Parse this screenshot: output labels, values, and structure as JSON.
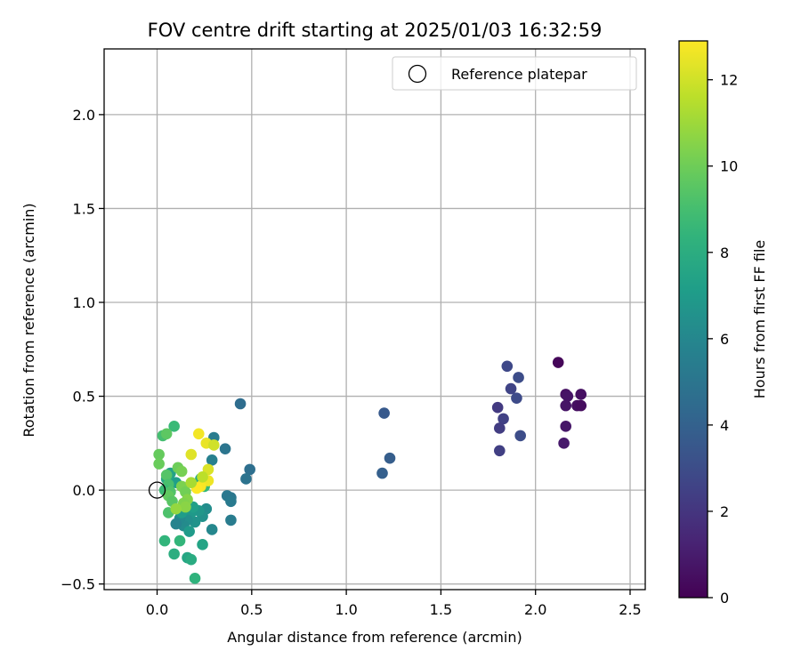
{
  "chart_data": {
    "type": "scatter",
    "title": "FOV centre drift starting at 2025/01/03 16:32:59",
    "xlabel": "Angular distance from reference (arcmin)",
    "ylabel": "Rotation from reference (arcmin)",
    "xlim": [
      -0.28,
      2.58
    ],
    "ylim": [
      -0.53,
      2.35
    ],
    "xticks": [
      0.0,
      0.5,
      1.0,
      1.5,
      2.0,
      2.5
    ],
    "xtick_labels": [
      "0.0",
      "0.5",
      "1.0",
      "1.5",
      "2.0",
      "2.5"
    ],
    "yticks": [
      -0.5,
      0.0,
      0.5,
      1.0,
      1.5,
      2.0
    ],
    "ytick_labels": [
      "−0.5",
      "0.0",
      "0.5",
      "1.0",
      "1.5",
      "2.0"
    ],
    "grid": true,
    "colormap": "viridis",
    "colorbar": {
      "label": "Hours from first FF file",
      "range": [
        0,
        12.9
      ],
      "ticks": [
        0,
        2,
        4,
        6,
        8,
        10,
        12
      ],
      "tick_labels": [
        "0",
        "2",
        "4",
        "6",
        "8",
        "10",
        "12"
      ]
    },
    "legend": {
      "placement": "top-right",
      "entries": [
        {
          "label": "Reference platepar",
          "marker": "open-circle"
        }
      ]
    },
    "reference_point": {
      "x": 0.0,
      "y": 0.0
    },
    "points": [
      {
        "x": 2.12,
        "y": 0.68,
        "t": 0.2
      },
      {
        "x": 2.16,
        "y": 0.51,
        "t": 0.6
      },
      {
        "x": 2.17,
        "y": 0.5,
        "t": 0.7
      },
      {
        "x": 2.24,
        "y": 0.51,
        "t": 0.5
      },
      {
        "x": 2.16,
        "y": 0.45,
        "t": 0.7
      },
      {
        "x": 2.22,
        "y": 0.45,
        "t": 0.5
      },
      {
        "x": 2.24,
        "y": 0.45,
        "t": 0.4
      },
      {
        "x": 2.16,
        "y": 0.34,
        "t": 0.8
      },
      {
        "x": 2.15,
        "y": 0.25,
        "t": 0.9
      },
      {
        "x": 1.85,
        "y": 0.66,
        "t": 2.8
      },
      {
        "x": 1.91,
        "y": 0.6,
        "t": 3.0
      },
      {
        "x": 1.87,
        "y": 0.54,
        "t": 2.6
      },
      {
        "x": 1.9,
        "y": 0.49,
        "t": 2.9
      },
      {
        "x": 1.8,
        "y": 0.44,
        "t": 2.2
      },
      {
        "x": 1.83,
        "y": 0.38,
        "t": 2.5
      },
      {
        "x": 1.81,
        "y": 0.33,
        "t": 2.3
      },
      {
        "x": 1.92,
        "y": 0.29,
        "t": 3.0
      },
      {
        "x": 1.81,
        "y": 0.21,
        "t": 2.4
      },
      {
        "x": 1.2,
        "y": 0.41,
        "t": 3.6
      },
      {
        "x": 1.23,
        "y": 0.17,
        "t": 3.8
      },
      {
        "x": 1.19,
        "y": 0.09,
        "t": 3.9
      },
      {
        "x": 0.44,
        "y": 0.46,
        "t": 4.6
      },
      {
        "x": 0.36,
        "y": 0.22,
        "t": 5.0
      },
      {
        "x": 0.3,
        "y": 0.28,
        "t": 5.4
      },
      {
        "x": 0.29,
        "y": 0.16,
        "t": 5.6
      },
      {
        "x": 0.49,
        "y": 0.11,
        "t": 4.7
      },
      {
        "x": 0.47,
        "y": 0.06,
        "t": 4.9
      },
      {
        "x": 0.37,
        "y": -0.03,
        "t": 5.2
      },
      {
        "x": 0.39,
        "y": -0.04,
        "t": 5.1
      },
      {
        "x": 0.39,
        "y": -0.06,
        "t": 5.3
      },
      {
        "x": 0.39,
        "y": -0.16,
        "t": 5.4
      },
      {
        "x": 0.29,
        "y": -0.21,
        "t": 6.0
      },
      {
        "x": 0.26,
        "y": -0.1,
        "t": 6.3
      },
      {
        "x": 0.24,
        "y": -0.14,
        "t": 6.5
      },
      {
        "x": 0.22,
        "y": -0.11,
        "t": 6.8
      },
      {
        "x": 0.2,
        "y": -0.17,
        "t": 6.6
      },
      {
        "x": 0.18,
        "y": -0.12,
        "t": 6.9
      },
      {
        "x": 0.16,
        "y": -0.16,
        "t": 6.4
      },
      {
        "x": 0.14,
        "y": -0.19,
        "t": 6.2
      },
      {
        "x": 0.12,
        "y": -0.15,
        "t": 6.1
      },
      {
        "x": 0.1,
        "y": -0.18,
        "t": 5.8
      },
      {
        "x": 0.13,
        "y": -0.12,
        "t": 7.1
      },
      {
        "x": 0.17,
        "y": -0.22,
        "t": 7.0
      },
      {
        "x": 0.19,
        "y": -0.09,
        "t": 7.3
      },
      {
        "x": 0.24,
        "y": -0.29,
        "t": 7.5
      },
      {
        "x": 0.16,
        "y": -0.36,
        "t": 7.6
      },
      {
        "x": 0.18,
        "y": -0.37,
        "t": 7.9
      },
      {
        "x": 0.2,
        "y": -0.47,
        "t": 8.3
      },
      {
        "x": 0.09,
        "y": -0.34,
        "t": 8.0
      },
      {
        "x": 0.04,
        "y": -0.27,
        "t": 8.4
      },
      {
        "x": 0.12,
        "y": -0.27,
        "t": 8.5
      },
      {
        "x": 0.22,
        "y": 0.04,
        "t": 8.2
      },
      {
        "x": 0.25,
        "y": 0.02,
        "t": 8.6
      },
      {
        "x": 0.23,
        "y": 0.06,
        "t": 7.8
      },
      {
        "x": 0.07,
        "y": 0.09,
        "t": 7.4
      },
      {
        "x": 0.05,
        "y": 0.06,
        "t": 7.7
      },
      {
        "x": 0.1,
        "y": 0.04,
        "t": 7.2
      },
      {
        "x": 0.09,
        "y": 0.34,
        "t": 8.7
      },
      {
        "x": 0.03,
        "y": 0.29,
        "t": 9.0
      },
      {
        "x": 0.05,
        "y": 0.3,
        "t": 9.6
      },
      {
        "x": 0.01,
        "y": 0.19,
        "t": 9.8
      },
      {
        "x": 0.01,
        "y": 0.14,
        "t": 9.9
      },
      {
        "x": 0.11,
        "y": 0.12,
        "t": 10.0
      },
      {
        "x": 0.13,
        "y": 0.1,
        "t": 10.2
      },
      {
        "x": 0.05,
        "y": 0.08,
        "t": 9.4
      },
      {
        "x": 0.06,
        "y": 0.03,
        "t": 9.1
      },
      {
        "x": 0.04,
        "y": 0.0,
        "t": 8.8
      },
      {
        "x": 0.07,
        "y": -0.01,
        "t": 9.3
      },
      {
        "x": 0.06,
        "y": -0.03,
        "t": 9.7
      },
      {
        "x": 0.13,
        "y": 0.02,
        "t": 10.3
      },
      {
        "x": 0.15,
        "y": -0.01,
        "t": 10.1
      },
      {
        "x": 0.16,
        "y": -0.05,
        "t": 10.5
      },
      {
        "x": 0.14,
        "y": -0.07,
        "t": 10.4
      },
      {
        "x": 0.08,
        "y": -0.06,
        "t": 9.5
      },
      {
        "x": 0.06,
        "y": -0.12,
        "t": 9.2
      },
      {
        "x": 0.15,
        "y": -0.09,
        "t": 10.6
      },
      {
        "x": 0.1,
        "y": -0.1,
        "t": 10.8
      },
      {
        "x": 0.22,
        "y": 0.3,
        "t": 12.7
      },
      {
        "x": 0.26,
        "y": 0.25,
        "t": 12.5
      },
      {
        "x": 0.3,
        "y": 0.24,
        "t": 12.0
      },
      {
        "x": 0.18,
        "y": 0.19,
        "t": 12.3
      },
      {
        "x": 0.27,
        "y": 0.11,
        "t": 12.2
      },
      {
        "x": 0.27,
        "y": 0.05,
        "t": 12.6
      },
      {
        "x": 0.23,
        "y": 0.02,
        "t": 12.8
      },
      {
        "x": 0.21,
        "y": 0.01,
        "t": 12.9
      },
      {
        "x": 0.24,
        "y": 0.07,
        "t": 11.6
      },
      {
        "x": 0.18,
        "y": 0.04,
        "t": 11.2
      }
    ]
  }
}
